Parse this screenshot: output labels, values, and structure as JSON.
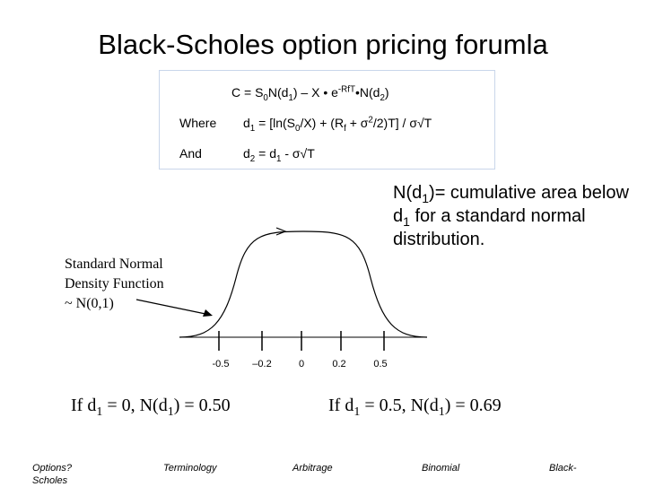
{
  "title": "Black-Scholes option pricing forumla",
  "formula": {
    "main": {
      "lead": "C = S",
      "s0_sub": "0",
      "n1": "N(d",
      "n1_sub": "1",
      "mid": ") – X • e",
      "exp": "-RfT",
      "tail": "•N(d",
      "n2_sub": "2",
      "close": ")"
    },
    "where_label": "Where",
    "d1": {
      "d": "d",
      "sub": "1",
      "body1": " = [ln(S",
      "s0_sub": "0",
      "body2": "/X) + (R",
      "rf_sub": "f",
      "body3": " + σ",
      "sq": "2",
      "body4": "/2)T] / σ√T"
    },
    "and_label": "And",
    "d2": {
      "d": "d",
      "sub": "2",
      "body1": " = d",
      "d1_sub": "1",
      "body2": " - σ√T"
    }
  },
  "note": {
    "p1": "N(d",
    "sub1": "1",
    "p2": ")= cumulative area below d",
    "sub2": "1",
    "p3": " for a standard normal distribution."
  },
  "density_label": {
    "line1": "Standard Normal",
    "line2": "Density Function",
    "line3": "~ N(0,1)"
  },
  "ticks": [
    "-0.5",
    "–0.2",
    "0",
    "0.2",
    "0.5"
  ],
  "results": {
    "left": {
      "p1": "If d",
      "s1": "1",
      "p2": " = 0, N(d",
      "s2": "1",
      "p3": ") = 0.50"
    },
    "right": {
      "p1": "If d",
      "s1": "1",
      "p2": " = 0.5, N(d",
      "s2": "1",
      "p3": ") = 0.69"
    }
  },
  "nav": {
    "options_line1": "Options?",
    "options_line2": "Scholes",
    "terminology": "Terminology",
    "arbitrage": "Arbitrage",
    "binomial": "Binomial",
    "black": "Black-"
  }
}
